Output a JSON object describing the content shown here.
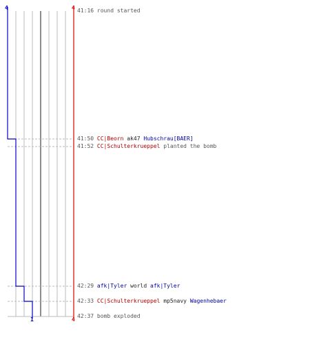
{
  "colors": {
    "team_blue": "#0000cc",
    "team_red": "#dd0000",
    "grid": "#bbbbbb",
    "grid_dark": "#666666",
    "dashed": "#bbbbbb"
  },
  "counts": {
    "blue_start": "4",
    "red_start": "4",
    "blue_end": "1",
    "red_end": "4"
  },
  "events": [
    {
      "time": "41:16",
      "type": "message",
      "text": "round started",
      "dashed": false
    },
    {
      "time": "41:50",
      "type": "kill",
      "killer": "CC|Beorn",
      "killer_team": "ct",
      "weapon": "ak47",
      "victim": "Hubschrau[BAER]",
      "victim_team": "t",
      "dashed": true
    },
    {
      "time": "41:52",
      "type": "plant",
      "player": "CC|Schulterkrueppel",
      "player_team": "ct",
      "text": "planted the bomb",
      "dashed": true
    },
    {
      "time": "42:29",
      "type": "kill",
      "killer": "afk|Tyler",
      "killer_team": "t",
      "weapon": "world",
      "victim": "afk|Tyler",
      "victim_team": "t",
      "dashed": true
    },
    {
      "time": "42:33",
      "type": "kill",
      "killer": "CC|Schulterkrueppel",
      "killer_team": "ct",
      "weapon": "mp5navy",
      "victim": "Wagenhebaer",
      "victim_team": "t",
      "dashed": true
    },
    {
      "time": "42:37",
      "type": "message",
      "text": "bomb exploded",
      "dashed": false
    }
  ],
  "blue_steps": [
    4,
    3,
    3,
    2,
    1,
    1
  ]
}
